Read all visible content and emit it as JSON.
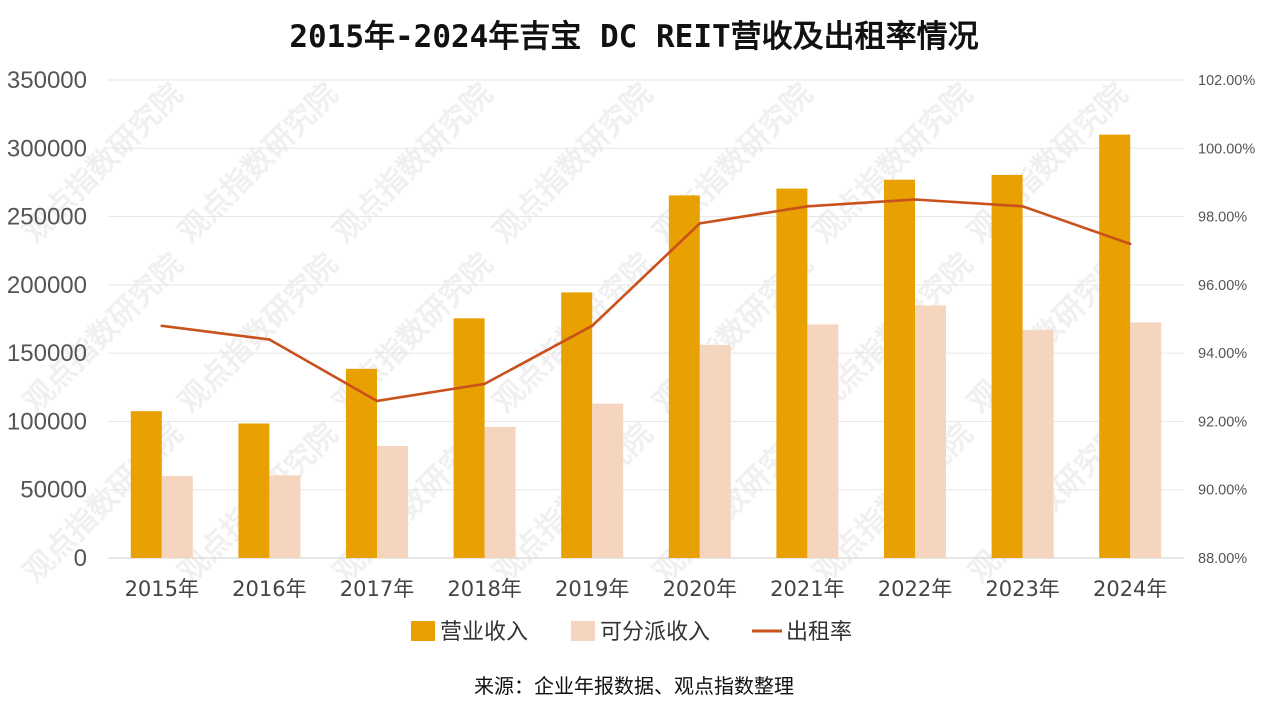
{
  "chart_data": {
    "type": "bar",
    "title": "2015年-2024年吉宝 DC REIT营收及出租率情况",
    "categories": [
      "2015年",
      "2016年",
      "2017年",
      "2018年",
      "2019年",
      "2020年",
      "2021年",
      "2022年",
      "2023年",
      "2024年"
    ],
    "series": [
      {
        "name": "营业收入",
        "type": "bar",
        "axis": "left",
        "color": "#E8A100",
        "values": [
          107500,
          98500,
          138500,
          175500,
          194500,
          265500,
          270500,
          277000,
          280500,
          310000
        ]
      },
      {
        "name": "可分派收入",
        "type": "bar",
        "axis": "left",
        "color": "#F5D5BE",
        "values": [
          60000,
          60500,
          82000,
          96000,
          113000,
          156000,
          171000,
          185000,
          167000,
          172500
        ]
      },
      {
        "name": "出租率",
        "type": "line",
        "axis": "right",
        "color": "#C8511C",
        "values": [
          94.8,
          94.4,
          92.6,
          93.1,
          94.8,
          97.8,
          98.3,
          98.5,
          98.3,
          97.2
        ]
      }
    ],
    "y_left": {
      "min": 0,
      "max": 350000,
      "ticks": [
        "0",
        "50000",
        "100000",
        "150000",
        "200000",
        "250000",
        "300000",
        "350000"
      ]
    },
    "y_right": {
      "min": 88,
      "max": 102,
      "ticks": [
        "88.00%",
        "90.00%",
        "92.00%",
        "94.00%",
        "96.00%",
        "98.00%",
        "100.00%",
        "102.00%"
      ]
    },
    "grid": true,
    "legend_position": "bottom"
  },
  "source": "来源：企业年报数据、观点指数整理",
  "watermark": "观点指数研究院"
}
